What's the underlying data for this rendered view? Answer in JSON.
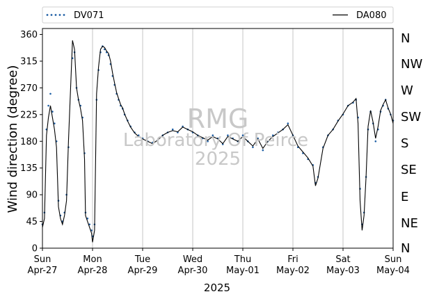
{
  "chart_data": {
    "type": "line",
    "ylabel": "Wind direction (degree)",
    "xlabel": "2025",
    "ylim": [
      0,
      370
    ],
    "yticks": [
      0,
      45,
      90,
      135,
      180,
      225,
      270,
      315,
      360
    ],
    "xlim": [
      0,
      7
    ],
    "grid": "vertical at day boundaries",
    "legend_placement": "top (above plot)",
    "xtick_labels": [
      {
        "day": "Sun",
        "date": "Apr-27"
      },
      {
        "day": "Mon",
        "date": "Apr-28"
      },
      {
        "day": "Tue",
        "date": "Apr-29"
      },
      {
        "day": "Wed",
        "date": "Apr-30"
      },
      {
        "day": "Thu",
        "date": "May-01"
      },
      {
        "day": "Fri",
        "date": "May-02"
      },
      {
        "day": "Sat",
        "date": "May-03"
      },
      {
        "day": "Sun",
        "date": "May-04"
      }
    ],
    "compass_labels": [
      "N",
      "NW",
      "W",
      "SW",
      "S",
      "SE",
      "E",
      "NE",
      "N"
    ],
    "watermark": {
      "line1": "RMG",
      "line2": "Laboratory Of Peirce",
      "line3": "2025"
    },
    "series": [
      {
        "name": "DV071",
        "style": "dotted",
        "color": "#1f5fa5",
        "points": [
          [
            0,
            40
          ],
          [
            0.04,
            60
          ],
          [
            0.08,
            200
          ],
          [
            0.12,
            240
          ],
          [
            0.16,
            260
          ],
          [
            0.2,
            230
          ],
          [
            0.24,
            210
          ],
          [
            0.28,
            180
          ],
          [
            0.32,
            80
          ],
          [
            0.36,
            55
          ],
          [
            0.4,
            45
          ],
          [
            0.44,
            60
          ],
          [
            0.48,
            90
          ],
          [
            0.52,
            170
          ],
          [
            0.6,
            320
          ],
          [
            0.64,
            330
          ],
          [
            0.68,
            270
          ],
          [
            0.72,
            250
          ],
          [
            0.76,
            240
          ],
          [
            0.8,
            220
          ],
          [
            0.84,
            160
          ],
          [
            0.86,
            60
          ],
          [
            0.9,
            50
          ],
          [
            0.94,
            40
          ],
          [
            0.98,
            30
          ],
          [
            1.0,
            20
          ],
          [
            1.04,
            40
          ],
          [
            1.08,
            250
          ],
          [
            1.12,
            300
          ],
          [
            1.16,
            330
          ],
          [
            1.2,
            340
          ],
          [
            1.24,
            335
          ],
          [
            1.28,
            330
          ],
          [
            1.32,
            325
          ],
          [
            1.36,
            310
          ],
          [
            1.4,
            290
          ],
          [
            1.44,
            275
          ],
          [
            1.48,
            260
          ],
          [
            1.52,
            250
          ],
          [
            1.56,
            240
          ],
          [
            1.6,
            235
          ],
          [
            1.64,
            225
          ],
          [
            1.7,
            215
          ],
          [
            1.76,
            205
          ],
          [
            1.84,
            195
          ],
          [
            1.92,
            190
          ],
          [
            2.0,
            185
          ],
          [
            2.1,
            180
          ],
          [
            2.2,
            178
          ],
          [
            2.3,
            182
          ],
          [
            2.4,
            190
          ],
          [
            2.5,
            195
          ],
          [
            2.6,
            200
          ],
          [
            2.7,
            195
          ],
          [
            2.8,
            205
          ],
          [
            2.9,
            200
          ],
          [
            3.0,
            195
          ],
          [
            3.1,
            190
          ],
          [
            3.2,
            185
          ],
          [
            3.3,
            180
          ],
          [
            3.4,
            190
          ],
          [
            3.5,
            185
          ],
          [
            3.6,
            175
          ],
          [
            3.7,
            190
          ],
          [
            3.8,
            185
          ],
          [
            3.9,
            180
          ],
          [
            4.0,
            190
          ],
          [
            4.1,
            180
          ],
          [
            4.2,
            170
          ],
          [
            4.3,
            185
          ],
          [
            4.4,
            165
          ],
          [
            4.5,
            180
          ],
          [
            4.6,
            190
          ],
          [
            4.7,
            195
          ],
          [
            4.8,
            200
          ],
          [
            4.9,
            210
          ],
          [
            5.0,
            190
          ],
          [
            5.1,
            170
          ],
          [
            5.2,
            160
          ],
          [
            5.3,
            150
          ],
          [
            5.4,
            140
          ],
          [
            5.45,
            110
          ],
          [
            5.5,
            120
          ],
          [
            5.6,
            170
          ],
          [
            5.7,
            190
          ],
          [
            5.8,
            200
          ],
          [
            5.9,
            215
          ],
          [
            6.0,
            225
          ],
          [
            6.1,
            240
          ],
          [
            6.2,
            245
          ],
          [
            6.26,
            250
          ],
          [
            6.3,
            220
          ],
          [
            6.34,
            100
          ],
          [
            6.38,
            40
          ],
          [
            6.42,
            60
          ],
          [
            6.46,
            120
          ],
          [
            6.5,
            200
          ],
          [
            6.55,
            230
          ],
          [
            6.6,
            210
          ],
          [
            6.65,
            180
          ],
          [
            6.7,
            200
          ],
          [
            6.75,
            230
          ],
          [
            6.8,
            240
          ],
          [
            6.85,
            250
          ],
          [
            6.9,
            235
          ],
          [
            6.95,
            225
          ],
          [
            7.0,
            215
          ]
        ]
      },
      {
        "name": "DA080",
        "style": "solid",
        "color": "#000000",
        "points": [
          [
            0,
            35
          ],
          [
            0.04,
            50
          ],
          [
            0.08,
            190
          ],
          [
            0.12,
            220
          ],
          [
            0.16,
            240
          ],
          [
            0.2,
            220
          ],
          [
            0.24,
            200
          ],
          [
            0.28,
            170
          ],
          [
            0.32,
            70
          ],
          [
            0.36,
            50
          ],
          [
            0.4,
            40
          ],
          [
            0.44,
            55
          ],
          [
            0.48,
            80
          ],
          [
            0.52,
            180
          ],
          [
            0.6,
            350
          ],
          [
            0.64,
            335
          ],
          [
            0.68,
            270
          ],
          [
            0.72,
            250
          ],
          [
            0.76,
            235
          ],
          [
            0.8,
            215
          ],
          [
            0.84,
            150
          ],
          [
            0.86,
            55
          ],
          [
            0.9,
            45
          ],
          [
            0.94,
            35
          ],
          [
            0.98,
            25
          ],
          [
            1.0,
            10
          ],
          [
            1.04,
            30
          ],
          [
            1.08,
            260
          ],
          [
            1.12,
            305
          ],
          [
            1.16,
            335
          ],
          [
            1.2,
            340
          ],
          [
            1.24,
            338
          ],
          [
            1.28,
            332
          ],
          [
            1.32,
            328
          ],
          [
            1.36,
            315
          ],
          [
            1.4,
            295
          ],
          [
            1.44,
            278
          ],
          [
            1.48,
            262
          ],
          [
            1.52,
            252
          ],
          [
            1.56,
            242
          ],
          [
            1.6,
            236
          ],
          [
            1.64,
            226
          ],
          [
            1.7,
            214
          ],
          [
            1.76,
            204
          ],
          [
            1.84,
            194
          ],
          [
            1.92,
            188
          ],
          [
            2.0,
            184
          ],
          [
            2.1,
            180
          ],
          [
            2.2,
            176
          ],
          [
            2.3,
            182
          ],
          [
            2.4,
            190
          ],
          [
            2.5,
            195
          ],
          [
            2.6,
            198
          ],
          [
            2.7,
            196
          ],
          [
            2.8,
            204
          ],
          [
            2.9,
            200
          ],
          [
            3.0,
            196
          ],
          [
            3.1,
            190
          ],
          [
            3.2,
            186
          ],
          [
            3.3,
            182
          ],
          [
            3.4,
            188
          ],
          [
            3.5,
            184
          ],
          [
            3.6,
            176
          ],
          [
            3.7,
            188
          ],
          [
            3.8,
            184
          ],
          [
            3.9,
            180
          ],
          [
            4.0,
            188
          ],
          [
            4.1,
            180
          ],
          [
            4.2,
            172
          ],
          [
            4.3,
            184
          ],
          [
            4.4,
            168
          ],
          [
            4.5,
            180
          ],
          [
            4.6,
            188
          ],
          [
            4.7,
            194
          ],
          [
            4.8,
            200
          ],
          [
            4.9,
            208
          ],
          [
            5.0,
            190
          ],
          [
            5.1,
            172
          ],
          [
            5.2,
            162
          ],
          [
            5.3,
            152
          ],
          [
            5.4,
            138
          ],
          [
            5.45,
            105
          ],
          [
            5.5,
            118
          ],
          [
            5.6,
            168
          ],
          [
            5.7,
            190
          ],
          [
            5.8,
            200
          ],
          [
            5.9,
            214
          ],
          [
            6.0,
            226
          ],
          [
            6.1,
            240
          ],
          [
            6.2,
            246
          ],
          [
            6.26,
            252
          ],
          [
            6.3,
            210
          ],
          [
            6.34,
            80
          ],
          [
            6.38,
            30
          ],
          [
            6.42,
            55
          ],
          [
            6.46,
            120
          ],
          [
            6.5,
            205
          ],
          [
            6.55,
            232
          ],
          [
            6.6,
            212
          ],
          [
            6.65,
            185
          ],
          [
            6.7,
            205
          ],
          [
            6.75,
            232
          ],
          [
            6.8,
            242
          ],
          [
            6.85,
            250
          ],
          [
            6.9,
            236
          ],
          [
            6.95,
            226
          ],
          [
            7.0,
            210
          ]
        ]
      }
    ]
  }
}
